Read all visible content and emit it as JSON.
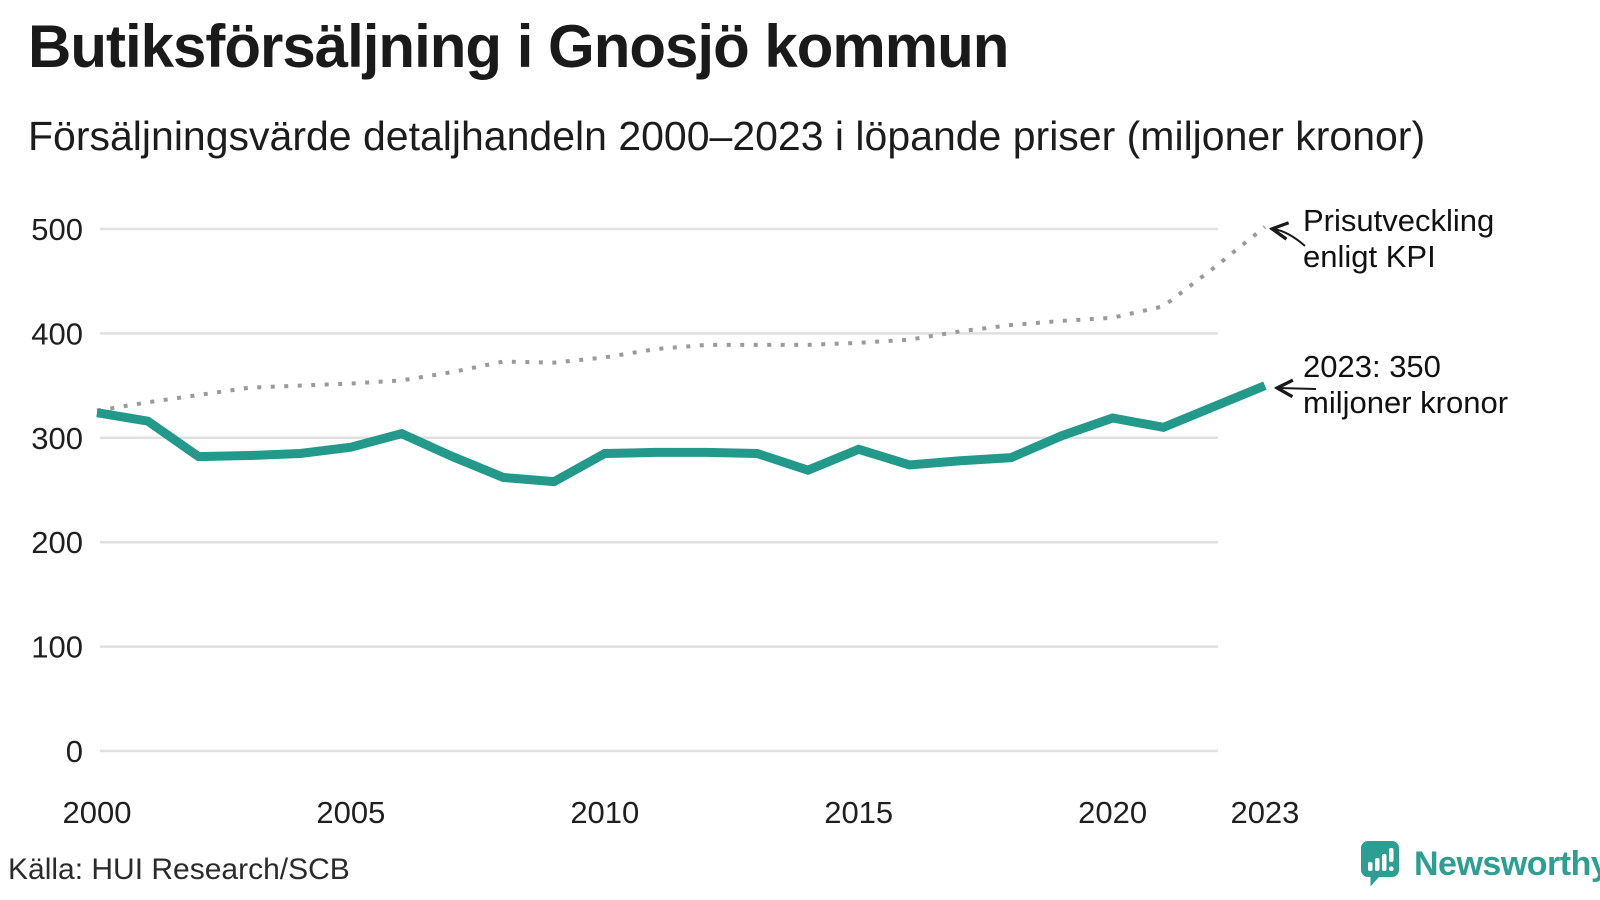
{
  "header": {
    "title": "Butiksförsäljning i Gnosjö kommun",
    "subtitle": "Försäljningsvärde detaljhandeln 2000–2023 i löpande priser (miljoner kronor)"
  },
  "chart_data": {
    "type": "line",
    "title": "Butiksförsäljning i Gnosjö kommun",
    "subtitle": "Försäljningsvärde detaljhandeln 2000–2023 i löpande priser (miljoner kronor)",
    "x": [
      2000,
      2001,
      2002,
      2003,
      2004,
      2005,
      2006,
      2007,
      2008,
      2009,
      2010,
      2011,
      2012,
      2013,
      2014,
      2015,
      2016,
      2017,
      2018,
      2019,
      2020,
      2021,
      2022,
      2023
    ],
    "series": [
      {
        "name": "Butiksförsäljning (löpande priser, miljoner kronor)",
        "style": "solid",
        "color": "#22998b",
        "values": [
          324,
          316,
          282,
          283,
          285,
          291,
          304,
          282,
          262,
          258,
          285,
          286,
          286,
          285,
          269,
          289,
          274,
          278,
          281,
          302,
          319,
          310,
          330,
          350
        ]
      },
      {
        "name": "Prisutveckling enligt KPI",
        "style": "dotted",
        "color": "#9a9a9a",
        "values": [
          326,
          334,
          341,
          348,
          350,
          352,
          355,
          363,
          373,
          372,
          377,
          385,
          389,
          389,
          389,
          391,
          394,
          402,
          408,
          412,
          415,
          426,
          463,
          502
        ]
      }
    ],
    "ylim": [
      0,
      520
    ],
    "y_ticks": [
      0,
      100,
      200,
      300,
      400,
      500
    ],
    "x_ticks": [
      2000,
      2005,
      2010,
      2015,
      2020,
      2023
    ],
    "grid": "horizontal",
    "legend_position": "inline-annotations",
    "annotations": [
      {
        "text": "Prisutveckling enligt KPI",
        "points_to": "KPI 2023"
      },
      {
        "text": "2023: 350 miljoner kronor",
        "points_to": "Butiksförsäljning 2023"
      }
    ]
  },
  "annotations": {
    "kpi": {
      "line1": "Prisutveckling",
      "line2": "enligt KPI"
    },
    "latest": {
      "line1": "2023: 350",
      "line2": "miljoner kronor"
    }
  },
  "footer": {
    "source": "Källa: HUI Research/SCB",
    "logo_text": "Newsworthy"
  },
  "colors": {
    "accent": "#22998b",
    "kpi_line": "#9a9a9a",
    "grid": "#e0e0e0",
    "text": "#1a1a1a",
    "logo": "#2e9e92"
  }
}
